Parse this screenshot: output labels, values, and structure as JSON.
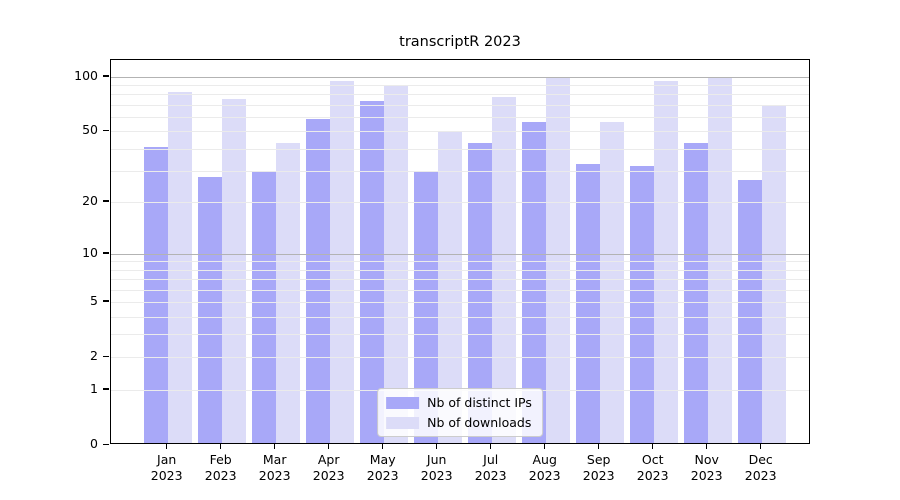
{
  "title": "transcriptR 2023",
  "colors": {
    "distinct_ips": "#a8a8f8",
    "downloads": "#dcdcf8",
    "grid_decade": "#b3b3b3",
    "grid_minor": "#ebebeb",
    "spine": "#000000",
    "background": "#ffffff"
  },
  "legend": {
    "items": [
      {
        "label": "Nb of distinct IPs",
        "series": "distinct_ips"
      },
      {
        "label": "Nb of downloads",
        "series": "downloads"
      }
    ],
    "position": "lower center"
  },
  "y_axis": {
    "tick_labels": [
      "100",
      "50",
      "20",
      "10",
      "5",
      "2",
      "1",
      "0"
    ]
  },
  "x_axis": {
    "months": [
      "Jan",
      "Feb",
      "Mar",
      "Apr",
      "May",
      "Jun",
      "Jul",
      "Aug",
      "Sep",
      "Oct",
      "Nov",
      "Dec"
    ],
    "year": "2023"
  },
  "chart_data": {
    "type": "bar",
    "title": "transcriptR 2023",
    "categories": [
      "Jan 2023",
      "Feb 2023",
      "Mar 2023",
      "Apr 2023",
      "May 2023",
      "Jun 2023",
      "Jul 2023",
      "Aug 2023",
      "Sep 2023",
      "Oct 2023",
      "Nov 2023",
      "Dec 2023"
    ],
    "series": [
      {
        "name": "Nb of distinct IPs",
        "values": [
          40,
          27,
          29,
          57,
          72,
          29,
          42,
          55,
          32,
          31,
          42,
          26
        ]
      },
      {
        "name": "Nb of downloads",
        "values": [
          80,
          73,
          42,
          92,
          87,
          48,
          75,
          97,
          55,
          92,
          96,
          67
        ]
      }
    ],
    "xlabel": "",
    "ylabel": "",
    "yscale": "log1p",
    "ylim": [
      0,
      123
    ],
    "y_ticks": [
      0,
      1,
      2,
      5,
      10,
      20,
      50,
      100
    ],
    "grid_minor_values": [
      1,
      2,
      3,
      4,
      5,
      6,
      7,
      8,
      9,
      20,
      30,
      40,
      50,
      60,
      70,
      80,
      90
    ],
    "grid_decade_values": [
      10,
      100
    ],
    "legend_position": "lower center",
    "grid": "both"
  }
}
